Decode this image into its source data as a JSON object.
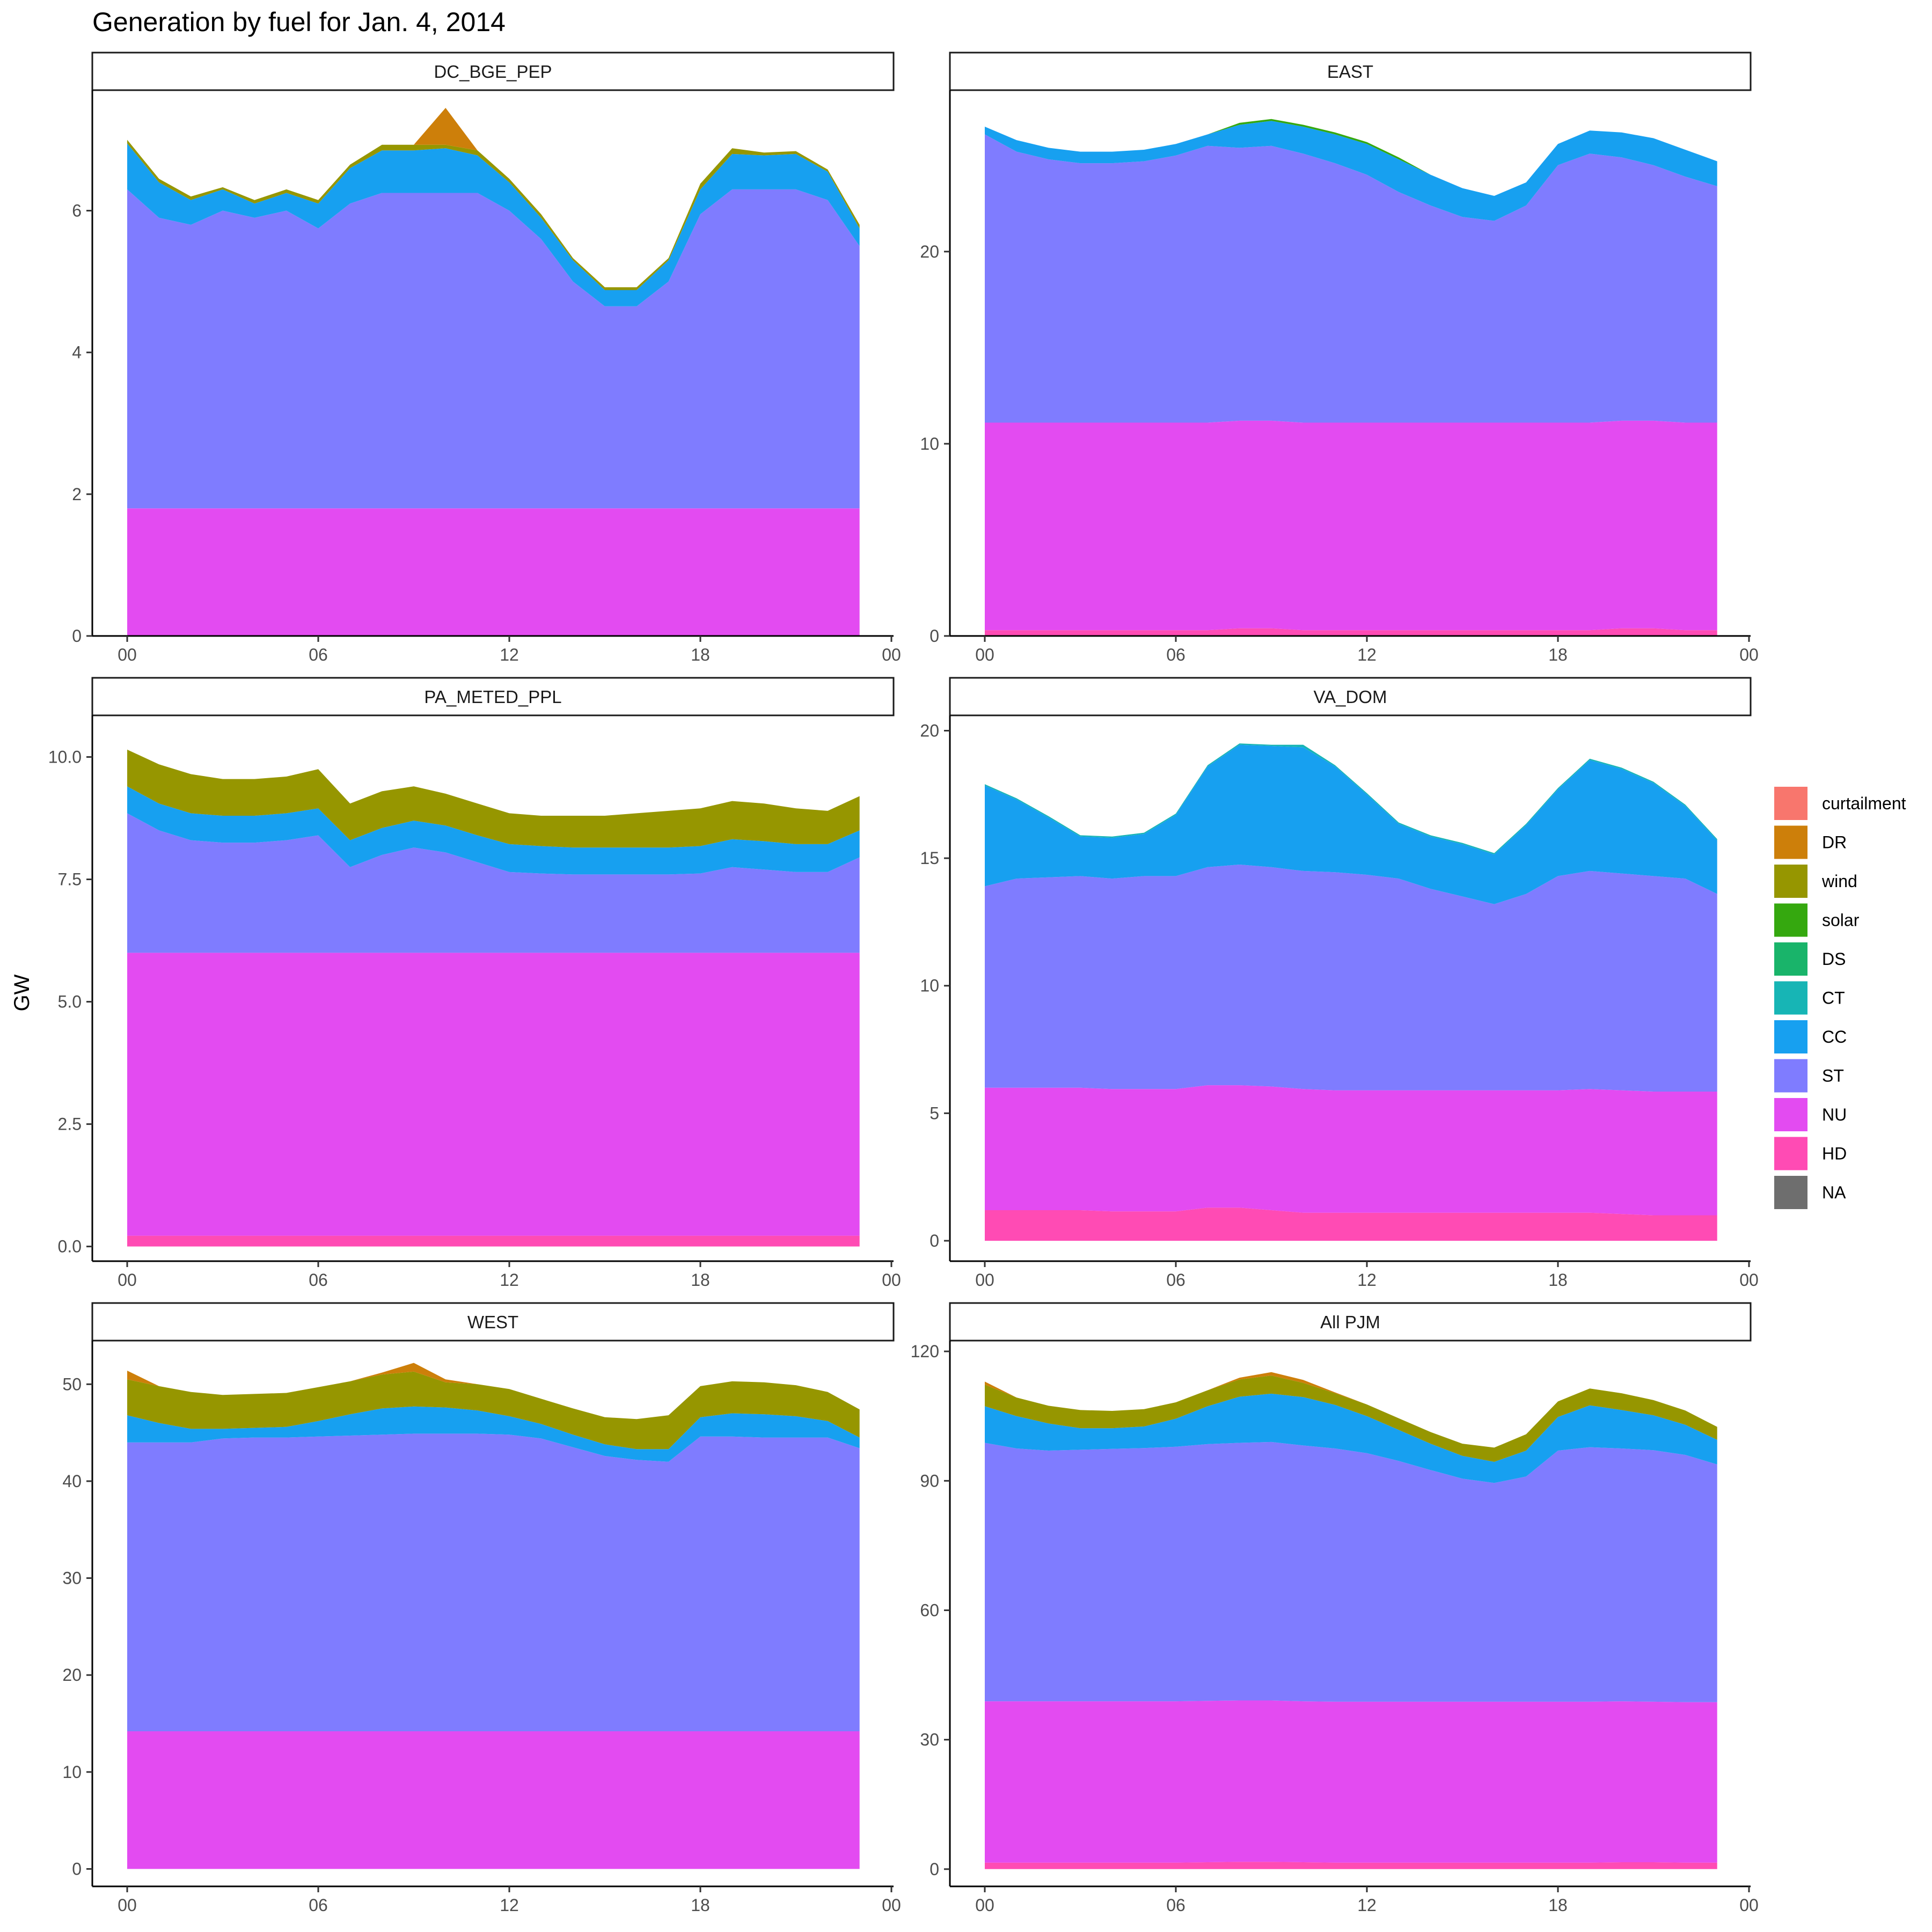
{
  "chart_data": {
    "type": "area",
    "title": "Generation by fuel for Jan. 4, 2014",
    "ylabel": "GW",
    "xlabel": "",
    "x_tick_labels": [
      "00",
      "06",
      "12",
      "18",
      "00"
    ],
    "hours": [
      0,
      1,
      2,
      3,
      4,
      5,
      6,
      7,
      8,
      9,
      10,
      11,
      12,
      13,
      14,
      15,
      16,
      17,
      18,
      19,
      20,
      21,
      22,
      23
    ],
    "legend": {
      "placement": "right",
      "entries": [
        {
          "key": "curtailment",
          "label": "curtailment",
          "color": "#F8766D"
        },
        {
          "key": "DR",
          "label": "DR",
          "color": "#CD7F0A"
        },
        {
          "key": "wind",
          "label": "wind",
          "color": "#969600"
        },
        {
          "key": "solar",
          "label": "solar",
          "color": "#35A80F"
        },
        {
          "key": "DS",
          "label": "DS",
          "color": "#19B46A"
        },
        {
          "key": "CT",
          "label": "CT",
          "color": "#17B5B5"
        },
        {
          "key": "CC",
          "label": "CC",
          "color": "#17A0F0"
        },
        {
          "key": "ST",
          "label": "ST",
          "color": "#7F7CFF"
        },
        {
          "key": "NU",
          "label": "NU",
          "color": "#E34BF1"
        },
        {
          "key": "HD",
          "label": "HD",
          "color": "#FF4BB4"
        },
        {
          "key": "NA",
          "label": "NA",
          "color": "#6E6E6E"
        }
      ]
    },
    "stack_order": [
      "HD",
      "NU",
      "ST",
      "CC",
      "CT",
      "DS",
      "solar",
      "wind",
      "DR",
      "curtailment"
    ],
    "panels": [
      {
        "name": "DC_BGE_PEP",
        "ylim": [
          0,
          7.7
        ],
        "yticks": [
          0,
          2,
          4,
          6
        ],
        "ytick_labels": [
          "0",
          "2",
          "4",
          "6"
        ],
        "cumulative": {
          "NU": [
            1.8,
            1.8,
            1.8,
            1.8,
            1.8,
            1.8,
            1.8,
            1.8,
            1.8,
            1.8,
            1.8,
            1.8,
            1.8,
            1.8,
            1.8,
            1.8,
            1.8,
            1.8,
            1.8,
            1.8,
            1.8,
            1.8,
            1.8,
            1.8
          ],
          "ST": [
            6.3,
            5.9,
            5.8,
            6.0,
            5.9,
            6.0,
            5.75,
            6.1,
            6.25,
            6.25,
            6.25,
            6.25,
            6.0,
            5.6,
            5.0,
            4.65,
            4.65,
            5.0,
            5.95,
            6.3,
            6.3,
            6.3,
            6.15,
            5.5
          ],
          "CC": [
            6.95,
            6.4,
            6.15,
            6.3,
            6.1,
            6.25,
            6.1,
            6.6,
            6.85,
            6.85,
            6.88,
            6.78,
            6.4,
            5.9,
            5.3,
            4.88,
            4.88,
            5.3,
            6.3,
            6.8,
            6.78,
            6.8,
            6.55,
            5.75
          ],
          "wind": [
            7.0,
            6.45,
            6.2,
            6.33,
            6.15,
            6.3,
            6.15,
            6.65,
            6.93,
            6.93,
            6.93,
            6.85,
            6.45,
            5.95,
            5.33,
            4.92,
            4.92,
            5.33,
            6.38,
            6.88,
            6.82,
            6.84,
            6.58,
            5.8
          ],
          "DR": [
            7.0,
            6.45,
            6.2,
            6.33,
            6.15,
            6.3,
            6.15,
            6.65,
            6.93,
            6.93,
            7.45,
            6.85,
            6.45,
            5.95,
            5.33,
            4.92,
            4.92,
            5.33,
            6.38,
            6.88,
            6.82,
            6.84,
            6.58,
            5.8
          ]
        }
      },
      {
        "name": "EAST",
        "ylim": [
          0,
          28.4
        ],
        "yticks": [
          0,
          10,
          20
        ],
        "ytick_labels": [
          "0",
          "10",
          "20"
        ],
        "cumulative": {
          "HD": [
            0.3,
            0.3,
            0.3,
            0.3,
            0.3,
            0.3,
            0.3,
            0.3,
            0.4,
            0.4,
            0.3,
            0.3,
            0.3,
            0.3,
            0.3,
            0.3,
            0.3,
            0.3,
            0.3,
            0.3,
            0.4,
            0.4,
            0.3,
            0.3
          ],
          "NU": [
            11.1,
            11.1,
            11.1,
            11.1,
            11.1,
            11.1,
            11.1,
            11.1,
            11.2,
            11.2,
            11.1,
            11.1,
            11.1,
            11.1,
            11.1,
            11.1,
            11.1,
            11.1,
            11.1,
            11.1,
            11.2,
            11.2,
            11.1,
            11.1
          ],
          "ST": [
            26.1,
            25.2,
            24.8,
            24.6,
            24.6,
            24.7,
            25.0,
            25.5,
            25.4,
            25.5,
            25.1,
            24.6,
            24.0,
            23.1,
            22.4,
            21.8,
            21.6,
            22.4,
            24.5,
            25.1,
            24.9,
            24.5,
            23.9,
            23.4
          ],
          "CC": [
            26.5,
            25.8,
            25.4,
            25.2,
            25.2,
            25.3,
            25.6,
            26.1,
            26.6,
            26.8,
            26.5,
            26.1,
            25.6,
            24.8,
            24.0,
            23.3,
            22.9,
            23.6,
            25.6,
            26.3,
            26.2,
            25.9,
            25.3,
            24.7
          ],
          "solar": [
            26.5,
            25.8,
            25.4,
            25.2,
            25.2,
            25.3,
            25.6,
            26.1,
            26.7,
            26.9,
            26.6,
            26.2,
            25.7,
            24.9,
            24.0,
            23.3,
            22.9,
            23.6,
            25.6,
            26.3,
            26.2,
            25.9,
            25.3,
            24.7
          ]
        }
      },
      {
        "name": "PA_METED_PPL",
        "ylim": [
          -0.3,
          10.85
        ],
        "yticks": [
          0,
          2.5,
          5,
          7.5,
          10
        ],
        "ytick_labels": [
          "0.0",
          "2.5",
          "5.0",
          "7.5",
          "10.0"
        ],
        "cumulative": {
          "HD": [
            0.22,
            0.22,
            0.22,
            0.22,
            0.22,
            0.22,
            0.22,
            0.22,
            0.22,
            0.22,
            0.22,
            0.22,
            0.22,
            0.22,
            0.22,
            0.22,
            0.22,
            0.22,
            0.22,
            0.22,
            0.22,
            0.22,
            0.22,
            0.22
          ],
          "NU": [
            6.0,
            6.0,
            6.0,
            6.0,
            6.0,
            6.0,
            6.0,
            6.0,
            6.0,
            6.0,
            6.0,
            6.0,
            6.0,
            6.0,
            6.0,
            6.0,
            6.0,
            6.0,
            6.0,
            6.0,
            6.0,
            6.0,
            6.0,
            6.0
          ],
          "ST": [
            8.85,
            8.5,
            8.3,
            8.25,
            8.25,
            8.3,
            8.4,
            7.75,
            8.0,
            8.15,
            8.05,
            7.85,
            7.65,
            7.62,
            7.6,
            7.6,
            7.6,
            7.6,
            7.62,
            7.75,
            7.7,
            7.65,
            7.65,
            7.95
          ],
          "CC": [
            9.4,
            9.05,
            8.85,
            8.8,
            8.8,
            8.85,
            8.95,
            8.3,
            8.55,
            8.7,
            8.6,
            8.4,
            8.22,
            8.18,
            8.15,
            8.15,
            8.15,
            8.15,
            8.18,
            8.32,
            8.28,
            8.22,
            8.22,
            8.5
          ],
          "wind": [
            10.15,
            9.85,
            9.65,
            9.55,
            9.55,
            9.6,
            9.75,
            9.05,
            9.3,
            9.4,
            9.25,
            9.05,
            8.85,
            8.8,
            8.8,
            8.8,
            8.85,
            8.9,
            8.95,
            9.1,
            9.05,
            8.95,
            8.9,
            9.2
          ]
        }
      },
      {
        "name": "VA_DOM",
        "ylim": [
          -0.8,
          20.6
        ],
        "yticks": [
          0,
          5,
          10,
          15,
          20
        ],
        "ytick_labels": [
          "0",
          "5",
          "10",
          "15",
          "20"
        ],
        "cumulative": {
          "HD": [
            1.2,
            1.2,
            1.2,
            1.2,
            1.15,
            1.15,
            1.15,
            1.3,
            1.3,
            1.2,
            1.1,
            1.1,
            1.1,
            1.1,
            1.1,
            1.1,
            1.1,
            1.1,
            1.1,
            1.1,
            1.05,
            1.0,
            1.0,
            1.0
          ],
          "NU": [
            6.0,
            6.0,
            6.0,
            6.0,
            5.95,
            5.95,
            5.95,
            6.1,
            6.1,
            6.05,
            5.95,
            5.9,
            5.9,
            5.9,
            5.9,
            5.9,
            5.9,
            5.9,
            5.9,
            5.95,
            5.9,
            5.85,
            5.85,
            5.85
          ],
          "ST": [
            13.9,
            14.2,
            14.25,
            14.3,
            14.2,
            14.3,
            14.3,
            14.65,
            14.75,
            14.65,
            14.5,
            14.45,
            14.35,
            14.2,
            13.8,
            13.5,
            13.2,
            13.6,
            14.3,
            14.5,
            14.4,
            14.3,
            14.2,
            13.6
          ],
          "CC": [
            17.85,
            17.3,
            16.6,
            15.85,
            15.8,
            15.95,
            16.7,
            18.6,
            19.45,
            19.4,
            19.35,
            18.6,
            17.5,
            16.35,
            15.85,
            15.55,
            15.15,
            16.3,
            17.7,
            18.85,
            18.5,
            17.95,
            17.05,
            15.7
          ],
          "CT": [
            17.9,
            17.35,
            16.65,
            15.9,
            15.85,
            16.0,
            16.75,
            18.65,
            19.5,
            19.45,
            19.45,
            18.65,
            17.55,
            16.4,
            15.9,
            15.6,
            15.2,
            16.35,
            17.75,
            18.9,
            18.55,
            18.0,
            17.1,
            15.75
          ]
        }
      },
      {
        "name": "WEST",
        "ylim": [
          -1.8,
          54.5
        ],
        "yticks": [
          0,
          10,
          20,
          30,
          40,
          50
        ],
        "ytick_labels": [
          "0",
          "10",
          "20",
          "30",
          "40",
          "50"
        ],
        "cumulative": {
          "NU": [
            14.2,
            14.2,
            14.2,
            14.2,
            14.2,
            14.2,
            14.2,
            14.2,
            14.2,
            14.2,
            14.2,
            14.2,
            14.2,
            14.2,
            14.2,
            14.2,
            14.2,
            14.2,
            14.2,
            14.2,
            14.2,
            14.2,
            14.2,
            14.2
          ],
          "ST": [
            44.0,
            44.0,
            44.0,
            44.4,
            44.5,
            44.5,
            44.6,
            44.7,
            44.8,
            44.9,
            44.9,
            44.9,
            44.8,
            44.4,
            43.5,
            42.6,
            42.2,
            42.0,
            44.6,
            44.6,
            44.5,
            44.5,
            44.5,
            43.4
          ],
          "CC": [
            46.8,
            46.0,
            45.4,
            45.4,
            45.5,
            45.6,
            46.2,
            46.9,
            47.5,
            47.7,
            47.6,
            47.3,
            46.7,
            45.9,
            44.8,
            43.8,
            43.3,
            43.3,
            46.6,
            47.0,
            46.9,
            46.7,
            46.2,
            44.5
          ],
          "wind": [
            50.5,
            49.8,
            49.2,
            48.9,
            49.0,
            49.1,
            49.7,
            50.3,
            51.0,
            51.3,
            50.2,
            50.0,
            49.5,
            48.5,
            47.5,
            46.6,
            46.4,
            46.8,
            49.8,
            50.3,
            50.2,
            49.9,
            49.2,
            47.4
          ],
          "DR": [
            51.4,
            49.8,
            49.2,
            48.9,
            49.0,
            49.1,
            49.7,
            50.3,
            51.2,
            52.2,
            50.5,
            50.0,
            49.5,
            48.5,
            47.5,
            46.6,
            46.4,
            46.8,
            49.8,
            50.3,
            50.2,
            49.9,
            49.2,
            47.4
          ]
        }
      },
      {
        "name": "All PJM",
        "ylim": [
          -4,
          122.5
        ],
        "yticks": [
          0,
          30,
          60,
          90,
          120
        ],
        "ytick_labels": [
          "0",
          "30",
          "60",
          "90",
          "120"
        ],
        "cumulative": {
          "HD": [
            1.5,
            1.5,
            1.5,
            1.5,
            1.5,
            1.5,
            1.5,
            1.6,
            1.7,
            1.7,
            1.6,
            1.5,
            1.5,
            1.5,
            1.5,
            1.5,
            1.5,
            1.5,
            1.5,
            1.5,
            1.6,
            1.6,
            1.5,
            1.5
          ],
          "NU": [
            38.9,
            38.9,
            38.9,
            38.9,
            38.9,
            38.9,
            38.9,
            39.0,
            39.1,
            39.1,
            38.9,
            38.8,
            38.8,
            38.8,
            38.8,
            38.8,
            38.8,
            38.8,
            38.8,
            38.8,
            38.9,
            38.8,
            38.7,
            38.7
          ],
          "ST": [
            98.8,
            97.5,
            97.0,
            97.2,
            97.4,
            97.6,
            97.9,
            98.5,
            98.8,
            99.0,
            98.2,
            97.5,
            96.4,
            94.6,
            92.5,
            90.5,
            89.5,
            91.0,
            97.0,
            97.8,
            97.5,
            97.1,
            96.0,
            93.8
          ],
          "CC": [
            107.3,
            105.0,
            103.3,
            102.2,
            102.2,
            102.6,
            104.4,
            107.3,
            109.5,
            110.2,
            109.4,
            107.6,
            105.0,
            101.8,
            98.6,
            95.8,
            94.4,
            97.0,
            104.8,
            107.5,
            106.4,
            105.2,
            103.0,
            99.5
          ],
          "wind": [
            112.3,
            109.3,
            107.4,
            106.4,
            106.2,
            106.6,
            108.2,
            111.0,
            113.5,
            114.4,
            112.7,
            110.3,
            107.7,
            104.5,
            101.3,
            98.6,
            97.7,
            100.8,
            108.4,
            111.4,
            110.3,
            108.7,
            106.3,
            102.5
          ],
          "DR": [
            113.0,
            109.3,
            107.4,
            106.4,
            106.2,
            106.6,
            108.2,
            111.0,
            113.9,
            115.2,
            113.4,
            110.5,
            107.7,
            104.5,
            101.3,
            98.6,
            97.7,
            100.8,
            108.4,
            111.4,
            110.3,
            108.7,
            106.3,
            102.5
          ]
        }
      }
    ]
  }
}
